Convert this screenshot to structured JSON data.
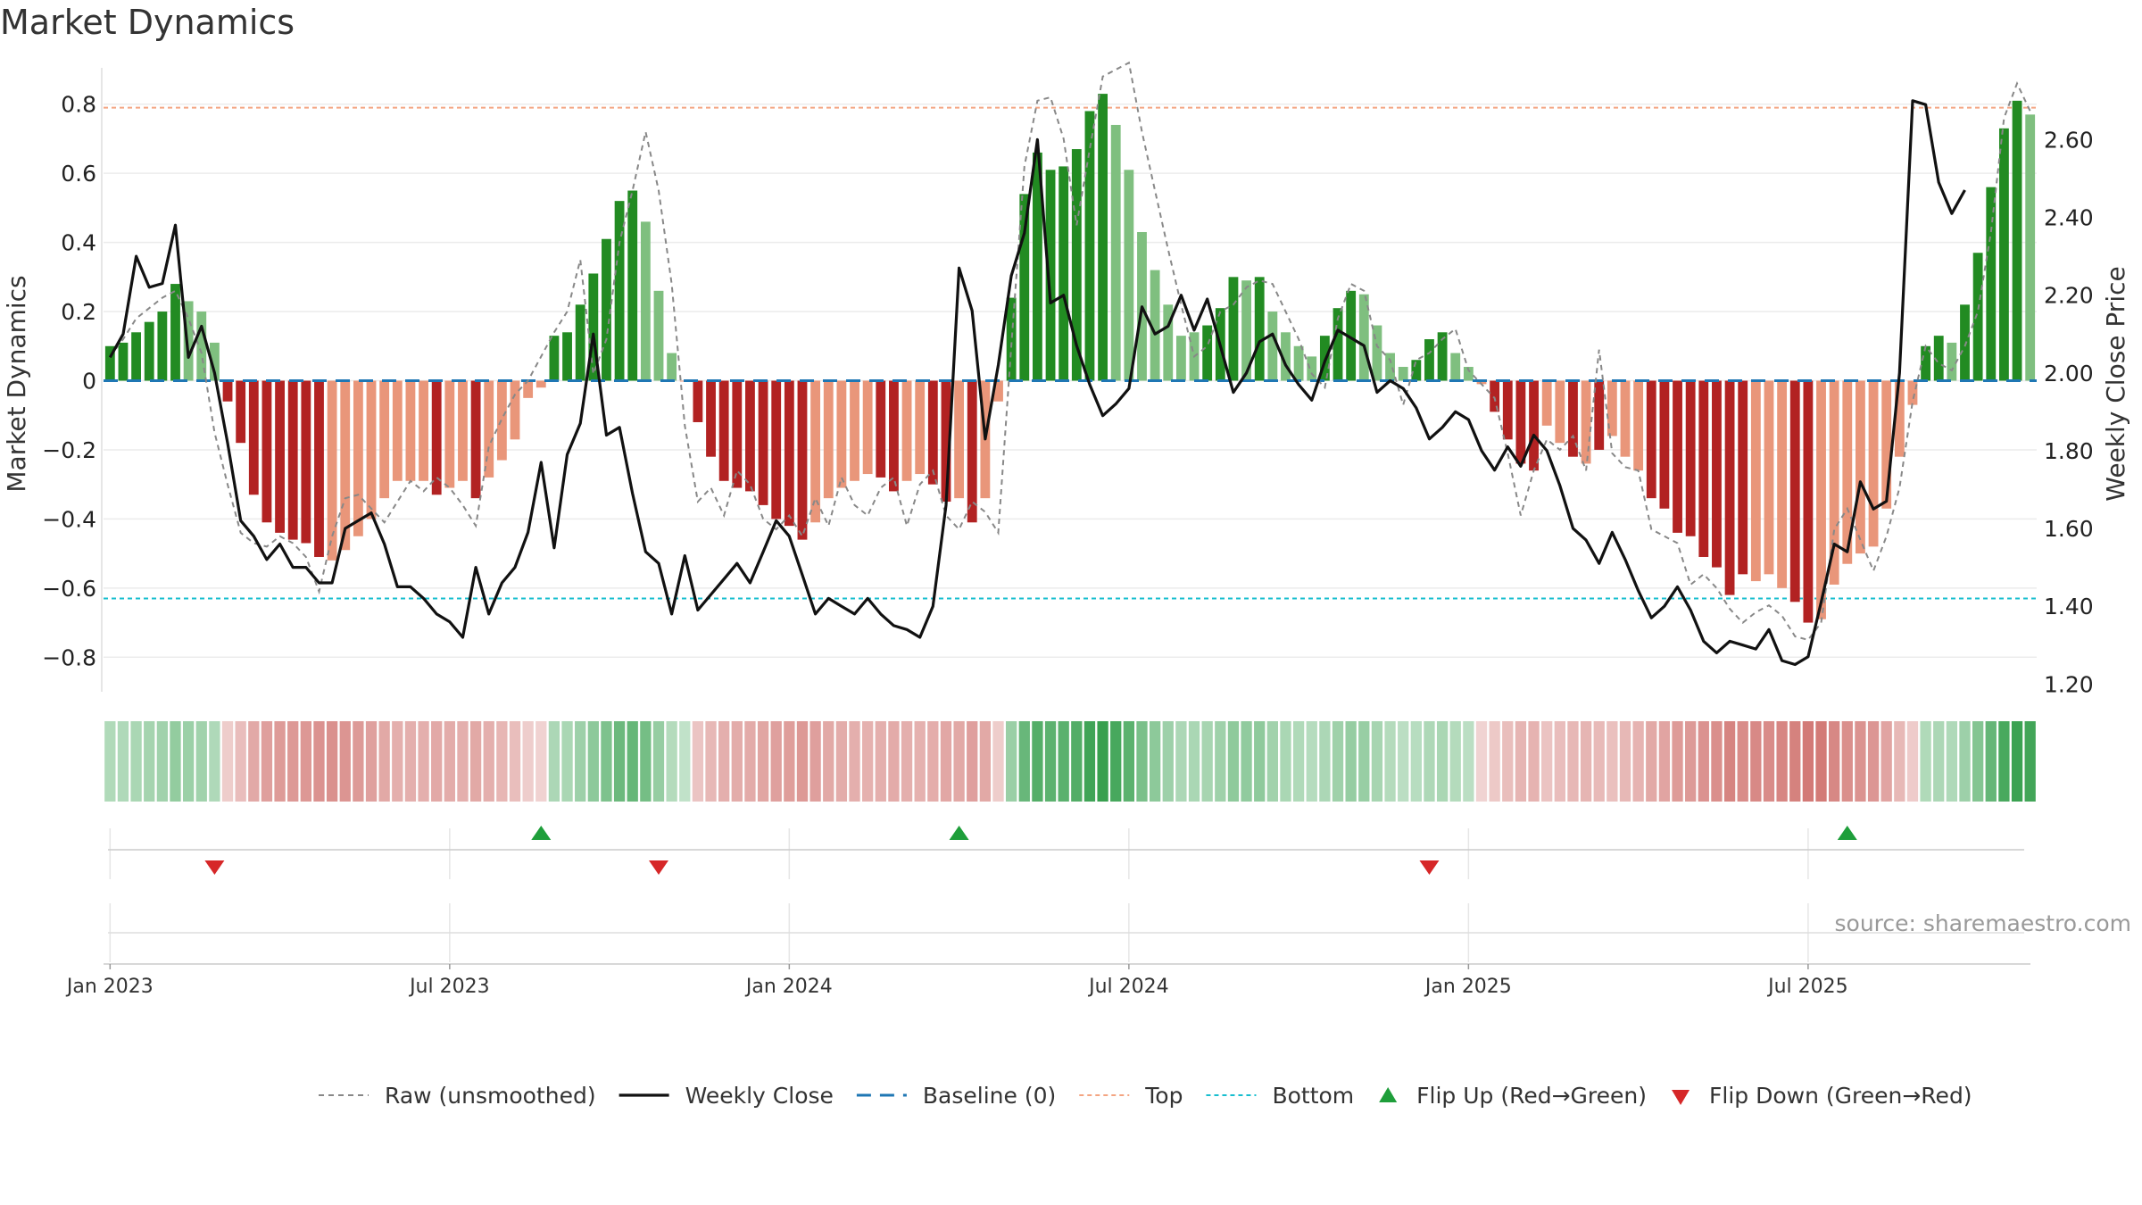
{
  "chart_data": {
    "type": "bar",
    "title": "Market Dynamics",
    "ylabel": "Market Dynamics",
    "y2label": "Weekly Close Price",
    "ylim": [
      -0.9,
      0.9
    ],
    "y2lim": [
      1.18,
      2.78
    ],
    "yticks": [
      0.8,
      0.6,
      0.4,
      0.2,
      0,
      -0.2,
      -0.4,
      -0.6,
      -0.8
    ],
    "yticklabels": [
      "0.8",
      "0.6",
      "0.4",
      "0.2",
      "0",
      "−0.2",
      "−0.4",
      "−0.6",
      "−0.8"
    ],
    "y2ticks": [
      2.6,
      2.4,
      2.2,
      2.0,
      1.8,
      1.6,
      1.4,
      1.2
    ],
    "y2ticklabels": [
      "2.60",
      "2.40",
      "2.20",
      "2.00",
      "1.80",
      "1.60",
      "1.40",
      "1.20"
    ],
    "xtick_weeks": [
      0,
      26,
      52,
      78,
      104,
      130
    ],
    "xticklabels": [
      "Jan 2023",
      "Jul 2023",
      "Jan 2024",
      "Jul 2024",
      "Jan 2025",
      "Jul 2025"
    ],
    "top_line": 0.79,
    "bottom_line": -0.63,
    "baseline": 0,
    "grid": true,
    "legend_position": "bottom",
    "colors": {
      "green_strong": "#228b22",
      "green_light": "#7fbf7f",
      "red_strong": "#b22222",
      "red_light": "#e9967a",
      "raw": "#888888",
      "close": "#111111",
      "baseline": "#1f77b4",
      "top": "#f4a582",
      "bottom": "#17becf",
      "flip_up": "#1e9e3a",
      "flip_down": "#d62728"
    },
    "series": [
      {
        "name": "Market Dynamics",
        "values": [
          0.1,
          0.11,
          0.14,
          0.17,
          0.2,
          0.28,
          0.23,
          0.2,
          0.11,
          -0.06,
          -0.18,
          -0.33,
          -0.41,
          -0.44,
          -0.46,
          -0.47,
          -0.51,
          -0.52,
          -0.49,
          -0.45,
          -0.4,
          -0.34,
          -0.29,
          -0.29,
          -0.29,
          -0.33,
          -0.31,
          -0.29,
          -0.34,
          -0.28,
          -0.23,
          -0.17,
          -0.05,
          -0.02,
          0.13,
          0.14,
          0.22,
          0.31,
          0.41,
          0.52,
          0.55,
          0.46,
          0.26,
          0.08,
          0.0,
          -0.12,
          -0.22,
          -0.29,
          -0.31,
          -0.32,
          -0.36,
          -0.4,
          -0.42,
          -0.46,
          -0.41,
          -0.34,
          -0.31,
          -0.29,
          -0.27,
          -0.28,
          -0.32,
          -0.29,
          -0.27,
          -0.3,
          -0.35,
          -0.34,
          -0.41,
          -0.34,
          -0.06,
          0.24,
          0.54,
          0.66,
          0.61,
          0.62,
          0.67,
          0.78,
          0.83,
          0.74,
          0.61,
          0.43,
          0.32,
          0.22,
          0.13,
          0.14,
          0.16,
          0.21,
          0.3,
          0.29,
          0.3,
          0.2,
          0.14,
          0.1,
          0.07,
          0.13,
          0.21,
          0.26,
          0.25,
          0.16,
          0.08,
          0.04,
          0.06,
          0.12,
          0.14,
          0.08,
          0.04,
          -0.01,
          -0.09,
          -0.17,
          -0.24,
          -0.26,
          -0.13,
          -0.18,
          -0.22,
          -0.24,
          -0.2,
          -0.16,
          -0.22,
          -0.26,
          -0.34,
          -0.37,
          -0.44,
          -0.45,
          -0.51,
          -0.54,
          -0.62,
          -0.56,
          -0.58,
          -0.56,
          -0.6,
          -0.64,
          -0.7,
          -0.69,
          -0.59,
          -0.53,
          -0.5,
          -0.48,
          -0.37,
          -0.22,
          -0.07,
          0.1,
          0.13,
          0.11,
          0.22,
          0.37,
          0.56,
          0.73,
          0.81,
          0.77
        ],
        "colors": [
          "G",
          "G",
          "G",
          "G",
          "G",
          "G",
          "g",
          "g",
          "g",
          "R",
          "R",
          "R",
          "R",
          "R",
          "R",
          "R",
          "R",
          "r",
          "r",
          "r",
          "r",
          "r",
          "r",
          "r",
          "r",
          "R",
          "r",
          "r",
          "R",
          "r",
          "r",
          "r",
          "r",
          "r",
          "G",
          "G",
          "G",
          "G",
          "G",
          "G",
          "G",
          "g",
          "g",
          "g",
          "r",
          "R",
          "R",
          "R",
          "R",
          "R",
          "R",
          "R",
          "R",
          "R",
          "r",
          "r",
          "r",
          "r",
          "r",
          "R",
          "R",
          "r",
          "r",
          "R",
          "R",
          "r",
          "R",
          "r",
          "r",
          "G",
          "G",
          "G",
          "G",
          "G",
          "G",
          "G",
          "G",
          "g",
          "g",
          "g",
          "g",
          "g",
          "g",
          "g",
          "G",
          "G",
          "G",
          "g",
          "G",
          "g",
          "g",
          "g",
          "g",
          "G",
          "G",
          "G",
          "g",
          "g",
          "g",
          "g",
          "G",
          "G",
          "G",
          "g",
          "g",
          "r",
          "R",
          "R",
          "R",
          "R",
          "r",
          "r",
          "R",
          "r",
          "R",
          "r",
          "r",
          "r",
          "R",
          "R",
          "R",
          "R",
          "R",
          "R",
          "R",
          "R",
          "r",
          "r",
          "r",
          "R",
          "R",
          "r",
          "r",
          "r",
          "r",
          "r",
          "r",
          "r",
          "r",
          "G",
          "G",
          "g",
          "G",
          "G",
          "G",
          "G",
          "G",
          "g"
        ]
      },
      {
        "name": "Raw (unsmoothed)",
        "values": [
          0.07,
          0.12,
          0.18,
          0.21,
          0.24,
          0.26,
          0.18,
          0.08,
          -0.15,
          -0.3,
          -0.44,
          -0.47,
          -0.48,
          -0.45,
          -0.47,
          -0.51,
          -0.61,
          -0.45,
          -0.34,
          -0.33,
          -0.37,
          -0.41,
          -0.35,
          -0.29,
          -0.32,
          -0.28,
          -0.31,
          -0.36,
          -0.42,
          -0.19,
          -0.11,
          -0.04,
          0.0,
          0.07,
          0.14,
          0.2,
          0.35,
          0.02,
          0.12,
          0.4,
          0.55,
          0.72,
          0.55,
          0.28,
          -0.13,
          -0.35,
          -0.31,
          -0.39,
          -0.26,
          -0.3,
          -0.4,
          -0.43,
          -0.39,
          -0.45,
          -0.34,
          -0.42,
          -0.28,
          -0.36,
          -0.39,
          -0.31,
          -0.28,
          -0.42,
          -0.3,
          -0.26,
          -0.39,
          -0.43,
          -0.35,
          -0.38,
          -0.44,
          0.1,
          0.62,
          0.81,
          0.82,
          0.7,
          0.45,
          0.67,
          0.88,
          0.9,
          0.92,
          0.72,
          0.55,
          0.38,
          0.22,
          0.07,
          0.1,
          0.2,
          0.22,
          0.27,
          0.29,
          0.28,
          0.2,
          0.12,
          0.02,
          -0.02,
          0.18,
          0.28,
          0.26,
          0.1,
          0.06,
          -0.07,
          0.06,
          0.08,
          0.12,
          0.15,
          0.03,
          -0.01,
          -0.05,
          -0.21,
          -0.39,
          -0.26,
          -0.17,
          -0.2,
          -0.16,
          -0.26,
          0.09,
          -0.21,
          -0.25,
          -0.26,
          -0.43,
          -0.45,
          -0.47,
          -0.59,
          -0.56,
          -0.6,
          -0.66,
          -0.7,
          -0.67,
          -0.65,
          -0.68,
          -0.74,
          -0.75,
          -0.7,
          -0.43,
          -0.37,
          -0.46,
          -0.55,
          -0.45,
          -0.31,
          -0.06,
          0.1,
          0.05,
          0.03,
          0.1,
          0.2,
          0.43,
          0.76,
          0.86,
          0.78
        ]
      },
      {
        "name": "Weekly Close",
        "axis": "right",
        "values": [
          2.04,
          2.1,
          2.3,
          2.22,
          2.23,
          2.38,
          2.04,
          2.12,
          2.0,
          1.82,
          1.62,
          1.58,
          1.52,
          1.56,
          1.5,
          1.5,
          1.46,
          1.46,
          1.6,
          1.62,
          1.64,
          1.56,
          1.45,
          1.45,
          1.42,
          1.38,
          1.36,
          1.32,
          1.5,
          1.38,
          1.46,
          1.5,
          1.59,
          1.77,
          1.55,
          1.79,
          1.87,
          2.1,
          1.84,
          1.86,
          1.69,
          1.54,
          1.51,
          1.38,
          1.53,
          1.39,
          1.43,
          1.47,
          1.51,
          1.46,
          1.54,
          1.62,
          1.58,
          1.48,
          1.38,
          1.42,
          1.4,
          1.38,
          1.42,
          1.38,
          1.35,
          1.34,
          1.32,
          1.4,
          1.66,
          2.27,
          2.16,
          1.83,
          2.02,
          2.25,
          2.36,
          2.6,
          2.18,
          2.2,
          2.07,
          1.97,
          1.89,
          1.92,
          1.96,
          2.17,
          2.1,
          2.12,
          2.2,
          2.11,
          2.19,
          2.07,
          1.95,
          2.0,
          2.08,
          2.1,
          2.02,
          1.97,
          1.93,
          2.03,
          2.11,
          2.09,
          2.07,
          1.95,
          1.98,
          1.96,
          1.91,
          1.83,
          1.86,
          1.9,
          1.88,
          1.8,
          1.75,
          1.81,
          1.76,
          1.84,
          1.8,
          1.71,
          1.6,
          1.57,
          1.51,
          1.59,
          1.52,
          1.44,
          1.37,
          1.4,
          1.45,
          1.39,
          1.31,
          1.28,
          1.31,
          1.3,
          1.29,
          1.34,
          1.26,
          1.25,
          1.27,
          1.41,
          1.56,
          1.54,
          1.72,
          1.65,
          1.67,
          2.0,
          2.7,
          2.69,
          2.49,
          2.41,
          2.47
        ]
      }
    ],
    "flips_up": [
      33,
      65,
      133
    ],
    "flips_down": [
      8,
      42,
      101
    ],
    "legend": [
      {
        "label": "Raw (unsmoothed)",
        "kind": "dashed-gray"
      },
      {
        "label": "Weekly Close",
        "kind": "solid-black"
      },
      {
        "label": "Baseline (0)",
        "kind": "dashed-blue"
      },
      {
        "label": "Top",
        "kind": "dotted-orange"
      },
      {
        "label": "Bottom",
        "kind": "dotted-cyan"
      },
      {
        "label": "Flip Up (Red→Green)",
        "kind": "triangle-up"
      },
      {
        "label": "Flip Down (Green→Red)",
        "kind": "triangle-down"
      }
    ],
    "source": "source: sharemaestro.com"
  }
}
